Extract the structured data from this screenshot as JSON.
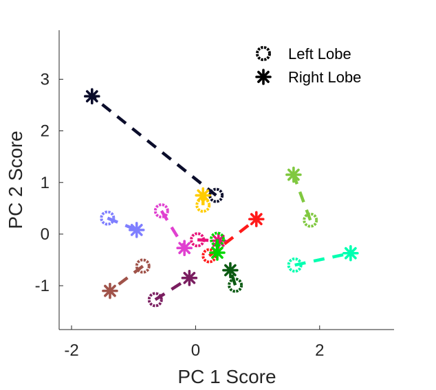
{
  "chart_data": {
    "type": "scatter",
    "title": "",
    "xlabel": "PC 1 Score",
    "ylabel": "PC 2 Score",
    "xlim": [
      -2.2,
      3.2
    ],
    "ylim": [
      -1.85,
      3.95
    ],
    "xticks": [
      -2,
      0,
      2
    ],
    "yticks": [
      -1,
      0,
      1,
      2,
      3
    ],
    "xtick_labels": [
      "-2",
      "0",
      "2"
    ],
    "ytick_labels": [
      "-1",
      "0",
      "1",
      "2",
      "3"
    ],
    "grid": false,
    "legend": {
      "position": "top-right",
      "entries": [
        {
          "label": "Left Lobe",
          "marker": "circle"
        },
        {
          "label": "Right Lobe",
          "marker": "asterisk"
        }
      ]
    },
    "pairs": [
      {
        "color": "#0b0d2b",
        "left": [
          0.33,
          0.75
        ],
        "right": [
          -1.67,
          2.67
        ]
      },
      {
        "color": "#ffcc00",
        "left": [
          0.12,
          0.56
        ],
        "right": [
          0.12,
          0.75
        ]
      },
      {
        "color": "#80c840",
        "left": [
          1.85,
          0.27
        ],
        "right": [
          1.58,
          1.15
        ]
      },
      {
        "color": "#7f7fff",
        "left": [
          -1.42,
          0.31
        ],
        "right": [
          -0.95,
          0.08
        ]
      },
      {
        "color": "#e040d0",
        "left": [
          -0.55,
          0.45
        ],
        "right": [
          -0.18,
          -0.27
        ]
      },
      {
        "color": "#ff1a1a",
        "left": [
          0.22,
          -0.42
        ],
        "right": [
          0.98,
          0.29
        ]
      },
      {
        "color": "#e8127a",
        "left": [
          0.03,
          -0.11
        ],
        "right": [
          0.37,
          -0.13
        ]
      },
      {
        "color": "#00d600",
        "left": [
          0.35,
          -0.1
        ],
        "right": [
          0.35,
          -0.36
        ]
      },
      {
        "color": "#00ffb0",
        "left": [
          1.6,
          -0.6
        ],
        "right": [
          2.5,
          -0.37
        ]
      },
      {
        "color": "#0b5a12",
        "left": [
          0.64,
          -0.99
        ],
        "right": [
          0.56,
          -0.7
        ]
      },
      {
        "color": "#a0534a",
        "left": [
          -0.85,
          -0.62
        ],
        "right": [
          -1.38,
          -1.1
        ]
      },
      {
        "color": "#7a1e60",
        "left": [
          -0.65,
          -1.27
        ],
        "right": [
          -0.1,
          -0.85
        ]
      }
    ]
  }
}
